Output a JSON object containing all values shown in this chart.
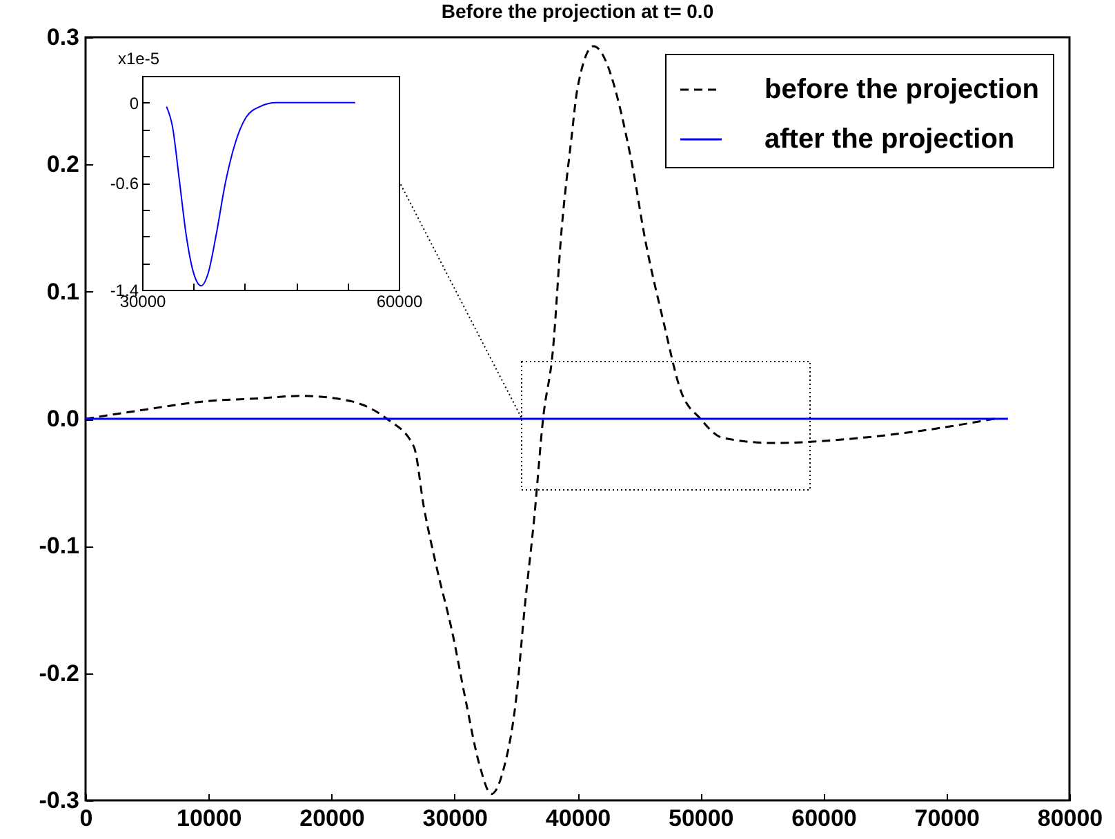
{
  "chart_data": [
    {
      "type": "line",
      "title": "Before the projection at t= 0.0",
      "legend": "top right",
      "xlim": [
        0,
        80000
      ],
      "xticks": [
        0,
        10000,
        20000,
        30000,
        40000,
        50000,
        60000,
        70000,
        80000
      ],
      "ylim": [
        -0.3,
        0.3
      ],
      "yticks": [
        -0.3,
        -0.2,
        -0.1,
        {
          "value": 0,
          "label": "0.0"
        },
        0.1,
        0.2,
        0.3
      ],
      "series": [
        {
          "name": "before the projection",
          "color": "#000000",
          "line_style": "dashed",
          "x": [
            0,
            4000,
            10000,
            14000,
            17500,
            21000,
            23000,
            24500,
            26700,
            27500,
            28600,
            29800,
            30900,
            32000,
            33000,
            34000,
            35000,
            35700,
            36500,
            37200,
            38000,
            38700,
            39500,
            40000,
            41300,
            44400,
            45500,
            47000,
            48400,
            50000,
            51800,
            55900,
            61900,
            67500,
            73900
          ],
          "values": [
            0,
            0.006,
            0.014,
            0.016,
            0.018,
            0.015,
            0.009,
            0,
            -0.022,
            -0.069,
            -0.119,
            -0.167,
            -0.221,
            -0.271,
            -0.295,
            -0.275,
            -0.221,
            -0.149,
            -0.076,
            0,
            0.054,
            0.148,
            0.22,
            0.26,
            0.293,
            0.202,
            0.141,
            0.076,
            0.022,
            0,
            -0.015,
            -0.019,
            -0.016,
            -0.01,
            0
          ]
        },
        {
          "name": "after the projection",
          "color": "#0000ff",
          "line_style": "solid",
          "x": [
            0,
            75000
          ],
          "values": [
            0,
            0
          ]
        }
      ]
    },
    {
      "type": "line",
      "ylabel": "x1e-5",
      "xlim": [
        30000,
        60000
      ],
      "xticks": [
        30000,
        {
          "value": 36000,
          "label": null
        },
        {
          "value": 42000,
          "label": null
        },
        {
          "value": 48000,
          "label": null
        },
        {
          "value": 54000,
          "label": null
        },
        60000
      ],
      "ylim": [
        -1.4,
        0.2
      ],
      "yticks": [
        -1.4,
        {
          "value": -1.2,
          "label": null
        },
        {
          "value": -1.0,
          "label": null
        },
        {
          "value": -0.8,
          "label": null
        },
        -0.6,
        {
          "value": -0.4,
          "label": null
        },
        {
          "value": -0.2,
          "label": null
        },
        0
      ],
      "series": [
        {
          "color": "#0000ff",
          "line_style": "solid",
          "x": [
            32850,
            33550,
            34350,
            35150,
            35950,
            36900,
            37700,
            38650,
            39700,
            40800,
            42150,
            43750,
            45650,
            54900
          ],
          "values": [
            -0.03,
            -0.18,
            -0.58,
            -0.99,
            -1.26,
            -1.37,
            -1.28,
            -0.99,
            -0.61,
            -0.32,
            -0.11,
            -0.03,
            0,
            0
          ]
        }
      ]
    }
  ]
}
